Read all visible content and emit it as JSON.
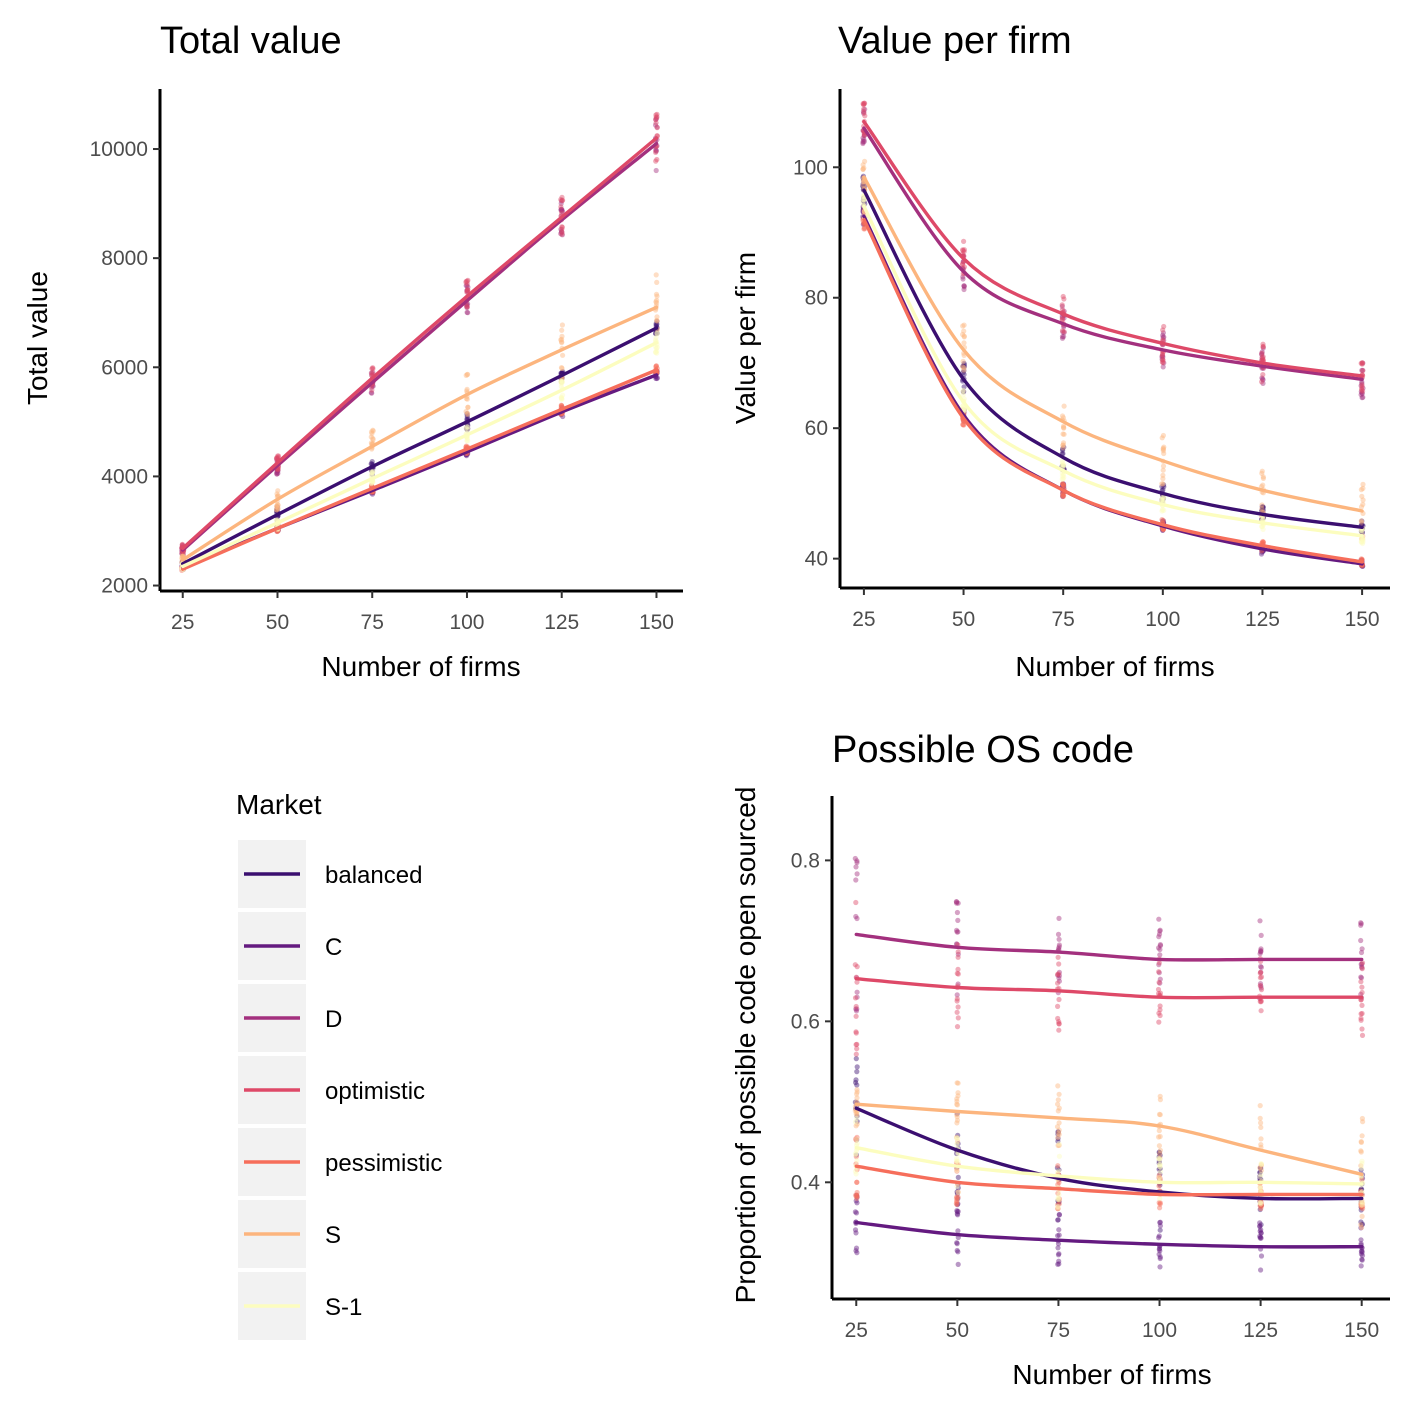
{
  "legend": {
    "title": "Market",
    "items": [
      {
        "label": "balanced",
        "color": "#3b0f70"
      },
      {
        "label": "C",
        "color": "#641a80"
      },
      {
        "label": "D",
        "color": "#a3307e"
      },
      {
        "label": "optimistic",
        "color": "#de4968"
      },
      {
        "label": "pessimistic",
        "color": "#f66e5b"
      },
      {
        "label": "S",
        "color": "#fcb57e"
      },
      {
        "label": "S-1",
        "color": "#fcfdbf"
      }
    ]
  },
  "chart_data": [
    {
      "id": "total",
      "type": "line",
      "title": "Total value",
      "xlabel": "Number of firms",
      "ylabel": "Total value",
      "x": [
        25,
        50,
        75,
        100,
        125,
        150
      ],
      "xlim": [
        19,
        157
      ],
      "ylim": [
        1900,
        11100
      ],
      "xticks": [
        25,
        50,
        75,
        100,
        125,
        150
      ],
      "yticks": [
        2000,
        4000,
        6000,
        8000,
        10000
      ],
      "grid": false,
      "series": [
        {
          "name": "balanced",
          "values": [
            2400,
            3300,
            4180,
            5000,
            5850,
            6720
          ],
          "spread": [
            60,
            150,
            150,
            150,
            120,
            130
          ]
        },
        {
          "name": "C",
          "values": [
            2330,
            3050,
            3740,
            4450,
            5180,
            5860
          ],
          "spread": [
            40,
            60,
            70,
            80,
            90,
            70
          ]
        },
        {
          "name": "D",
          "values": [
            2650,
            4200,
            5720,
            7220,
            8700,
            10100
          ],
          "spread": [
            90,
            160,
            220,
            300,
            380,
            500
          ]
        },
        {
          "name": "optimistic",
          "values": [
            2680,
            4250,
            5800,
            7300,
            8750,
            10200
          ],
          "spread": [
            90,
            160,
            220,
            300,
            380,
            500
          ]
        },
        {
          "name": "pessimistic",
          "values": [
            2300,
            3050,
            3780,
            4500,
            5230,
            5950
          ],
          "spread": [
            40,
            60,
            70,
            80,
            90,
            80
          ]
        },
        {
          "name": "S",
          "values": [
            2470,
            3580,
            4550,
            5500,
            6320,
            7100
          ],
          "spread": [
            80,
            200,
            300,
            400,
            550,
            700
          ]
        },
        {
          "name": "S-1",
          "values": [
            2350,
            3150,
            3960,
            4760,
            5580,
            6450
          ],
          "spread": [
            60,
            120,
            140,
            160,
            180,
            200
          ]
        }
      ]
    },
    {
      "id": "perfirm",
      "type": "line",
      "title": "Value per firm",
      "xlabel": "Number of firms",
      "ylabel": "Value per firm",
      "x": [
        25,
        50,
        75,
        100,
        125,
        150
      ],
      "xlim": [
        19,
        157
      ],
      "ylim": [
        35.5,
        112
      ],
      "xticks": [
        25,
        50,
        75,
        100,
        125,
        150
      ],
      "yticks": [
        40,
        60,
        80,
        100
      ],
      "grid": false,
      "series": [
        {
          "name": "balanced",
          "values": [
            96.5,
            67.5,
            55.5,
            50,
            46.8,
            44.8
          ],
          "spread": [
            2.5,
            3,
            2,
            1.5,
            1.2,
            1
          ]
        },
        {
          "name": "C",
          "values": [
            92.5,
            62,
            50.5,
            45,
            41.5,
            39.2
          ],
          "spread": [
            1.5,
            1.2,
            1,
            0.8,
            0.8,
            0.6
          ]
        },
        {
          "name": "D",
          "values": [
            106,
            84,
            76,
            72,
            69.5,
            67.5
          ],
          "spread": [
            3,
            3,
            3,
            3,
            3,
            3
          ]
        },
        {
          "name": "optimistic",
          "values": [
            107,
            86,
            77.5,
            73,
            70,
            68
          ],
          "spread": [
            3,
            3,
            3,
            3,
            3,
            3
          ]
        },
        {
          "name": "pessimistic",
          "values": [
            92,
            61.5,
            50.5,
            45.2,
            42,
            39.5
          ],
          "spread": [
            1.5,
            1.2,
            1,
            0.8,
            0.8,
            0.6
          ]
        },
        {
          "name": "S",
          "values": [
            98.5,
            72,
            61,
            55,
            50.5,
            47.3
          ],
          "spread": [
            2.5,
            4,
            4,
            4,
            4,
            5
          ]
        },
        {
          "name": "S-1",
          "values": [
            94,
            64,
            53.5,
            48.3,
            45.5,
            43.5
          ],
          "spread": [
            2,
            2,
            1.5,
            1.2,
            1.2,
            1.2
          ]
        }
      ]
    },
    {
      "id": "os",
      "type": "line",
      "title": "Possible OS code",
      "xlabel": "Number of firms",
      "ylabel": "Proportion of possible code open sourced",
      "x": [
        25,
        50,
        75,
        100,
        125,
        150
      ],
      "xlim": [
        19,
        157
      ],
      "ylim": [
        0.255,
        0.88
      ],
      "xticks": [
        25,
        50,
        75,
        100,
        125,
        150
      ],
      "yticks": [
        0.4,
        0.6,
        0.8
      ],
      "grid": false,
      "series": [
        {
          "name": "balanced",
          "values": [
            0.492,
            0.44,
            0.405,
            0.388,
            0.38,
            0.38
          ],
          "spread": [
            0.07,
            0.07,
            0.06,
            0.05,
            0.04,
            0.04
          ]
        },
        {
          "name": "C",
          "values": [
            0.35,
            0.335,
            0.328,
            0.323,
            0.32,
            0.32
          ],
          "spread": [
            0.04,
            0.04,
            0.035,
            0.03,
            0.03,
            0.025
          ]
        },
        {
          "name": "D",
          "values": [
            0.708,
            0.692,
            0.686,
            0.677,
            0.677,
            0.677
          ],
          "spread": [
            0.1,
            0.06,
            0.06,
            0.05,
            0.05,
            0.05
          ]
        },
        {
          "name": "optimistic",
          "values": [
            0.653,
            0.642,
            0.638,
            0.63,
            0.63,
            0.63
          ],
          "spread": [
            0.1,
            0.06,
            0.06,
            0.05,
            0.05,
            0.05
          ]
        },
        {
          "name": "pessimistic",
          "values": [
            0.42,
            0.4,
            0.392,
            0.385,
            0.385,
            0.385
          ],
          "spread": [
            0.04,
            0.03,
            0.03,
            0.025,
            0.02,
            0.02
          ]
        },
        {
          "name": "S",
          "values": [
            0.497,
            0.488,
            0.48,
            0.47,
            0.44,
            0.41
          ],
          "spread": [
            0.04,
            0.04,
            0.04,
            0.04,
            0.06,
            0.08
          ]
        },
        {
          "name": "S-1",
          "values": [
            0.443,
            0.42,
            0.408,
            0.4,
            0.4,
            0.398
          ],
          "spread": [
            0.04,
            0.04,
            0.04,
            0.03,
            0.03,
            0.03
          ]
        }
      ]
    }
  ]
}
